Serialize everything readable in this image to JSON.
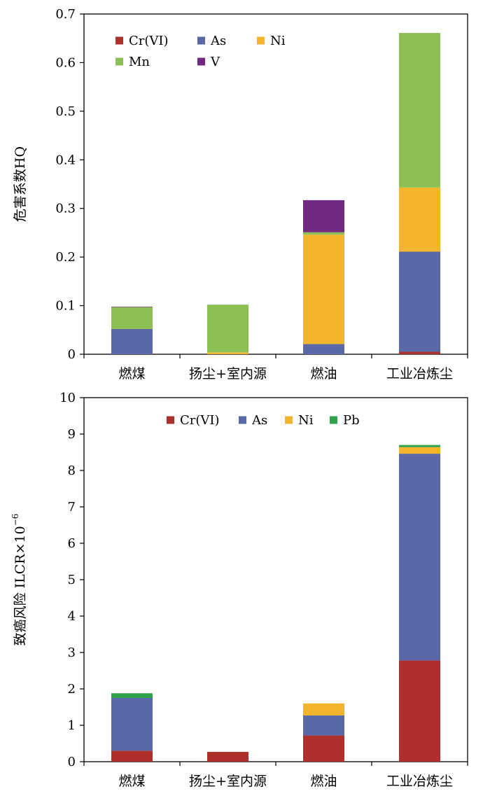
{
  "colors": {
    "Cr(VI)": "#ad302a",
    "As": "#5a68a8",
    "Ni": "#f3b42e",
    "Mn": "#8dc054",
    "V": "#702a80",
    "Pb": "#2fa24a"
  },
  "chart_data": [
    {
      "type": "bar",
      "stacked": true,
      "categories": [
        "燃煤",
        "扬尘+室内源",
        "燃油",
        "工业冶炼尘"
      ],
      "ylabel": "危害系数HQ",
      "ylim": [
        0,
        0.7
      ],
      "yticks": [
        "0",
        "0.1",
        "0.2",
        "0.3",
        "0.4",
        "0.5",
        "0.6",
        "0.7"
      ],
      "legend_position": "top-left",
      "legend_columns": 3,
      "series": [
        {
          "name": "Cr(VI)",
          "values": [
            0,
            0,
            0,
            0.005
          ]
        },
        {
          "name": "As",
          "values": [
            0.052,
            0,
            0.021,
            0.206
          ]
        },
        {
          "name": "Ni",
          "values": [
            0,
            0.004,
            0.225,
            0.132
          ]
        },
        {
          "name": "Mn",
          "values": [
            0.045,
            0.098,
            0.005,
            0.318
          ]
        },
        {
          "name": "V",
          "values": [
            0.001,
            0,
            0.066,
            0
          ]
        }
      ]
    },
    {
      "type": "bar",
      "stacked": true,
      "categories": [
        "燃煤",
        "扬尘+室内源",
        "燃油",
        "工业冶炼尘"
      ],
      "ylabel": "致癌风险 ILCR×10",
      "ylabel_superscript": "−6",
      "ylim": [
        0,
        10
      ],
      "yticks": [
        "0",
        "1",
        "2",
        "3",
        "4",
        "5",
        "6",
        "7",
        "8",
        "9",
        "10"
      ],
      "legend_position": "top-center",
      "legend_columns": 4,
      "series": [
        {
          "name": "Cr(VI)",
          "values": [
            0.3,
            0.27,
            0.72,
            2.78
          ]
        },
        {
          "name": "As",
          "values": [
            1.45,
            0,
            0.55,
            5.68
          ]
        },
        {
          "name": "Ni",
          "values": [
            0,
            0,
            0.33,
            0.18
          ]
        },
        {
          "name": "Pb",
          "values": [
            0.13,
            0,
            0,
            0.06
          ]
        }
      ]
    }
  ]
}
